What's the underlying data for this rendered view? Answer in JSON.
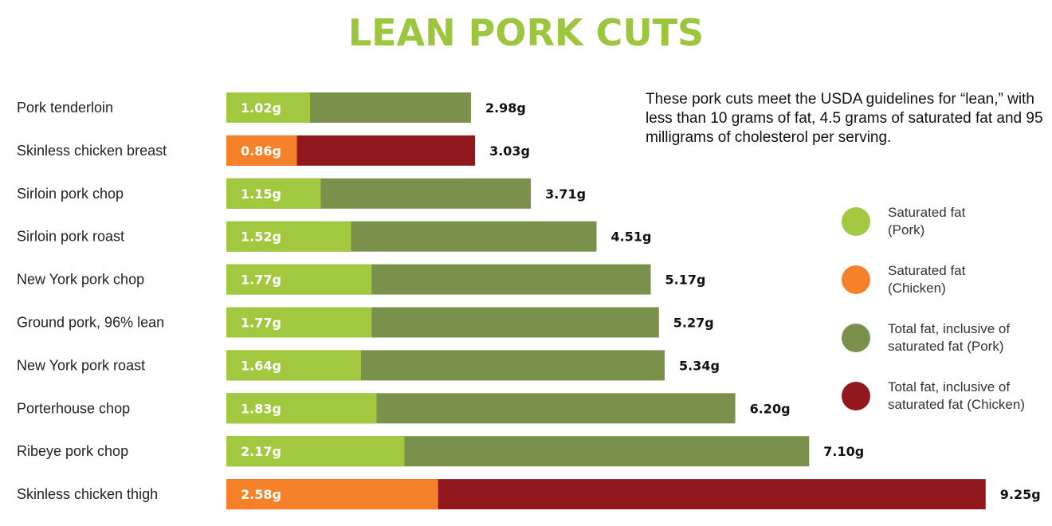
{
  "title": "LEAN PORK CUTS",
  "note": "These pork cuts meet the USDA guidelines for “lean,” with less than 10 grams of fat, 4.5 grams of saturated fat and 95 milligrams of cholesterol per serving.",
  "colors": {
    "title": "#9dc63f",
    "sat_pork": "#a2c83f",
    "sat_chicken": "#f5822a",
    "total_pork": "#7a914b",
    "total_chicken": "#91191e"
  },
  "legend": [
    {
      "label": "Saturated fat\n(Pork)",
      "color": "#a2c83f"
    },
    {
      "label": "Saturated fat\n(Chicken)",
      "color": "#f5822a"
    },
    {
      "label": "Total fat, inclusive of\nsaturated fat (Pork)",
      "color": "#7a914b"
    },
    {
      "label": "Total fat, inclusive of\nsaturated fat (Chicken)",
      "color": "#91191e"
    }
  ],
  "chart_data": {
    "type": "bar",
    "orientation": "horizontal",
    "stacked": "overlay",
    "grid": false,
    "legend_position": "right",
    "xlim": [
      0,
      9.25
    ],
    "unit": "g",
    "categories": [
      "Pork tenderloin",
      "Skinless chicken breast",
      "Sirloin pork chop",
      "Sirloin pork roast",
      "New York  pork chop",
      "Ground pork, 96% lean",
      "New York  pork roast",
      "Porterhouse chop",
      "Ribeye pork chop",
      "Skinless chicken thigh"
    ],
    "kind": [
      "pork",
      "chicken",
      "pork",
      "pork",
      "pork",
      "pork",
      "pork",
      "pork",
      "pork",
      "chicken"
    ],
    "series": [
      {
        "name": "Saturated fat",
        "values": [
          1.02,
          0.86,
          1.15,
          1.52,
          1.77,
          1.77,
          1.64,
          1.83,
          2.17,
          2.58
        ],
        "labels": [
          "1.02g",
          "0.86g",
          "1.15g",
          "1.52g",
          "1.77g",
          "1.77g",
          "1.64g",
          "1.83g",
          "2.17g",
          "2.58g"
        ]
      },
      {
        "name": "Total fat, inclusive of saturated fat",
        "values": [
          2.98,
          3.03,
          3.71,
          4.51,
          5.17,
          5.27,
          5.34,
          6.2,
          7.1,
          9.25
        ],
        "labels": [
          "2.98g",
          "3.03g",
          "3.71g",
          "4.51g",
          "5.17g",
          "5.27g",
          "5.34g",
          "6.20g",
          "7.10g",
          "9.25g"
        ]
      }
    ]
  }
}
